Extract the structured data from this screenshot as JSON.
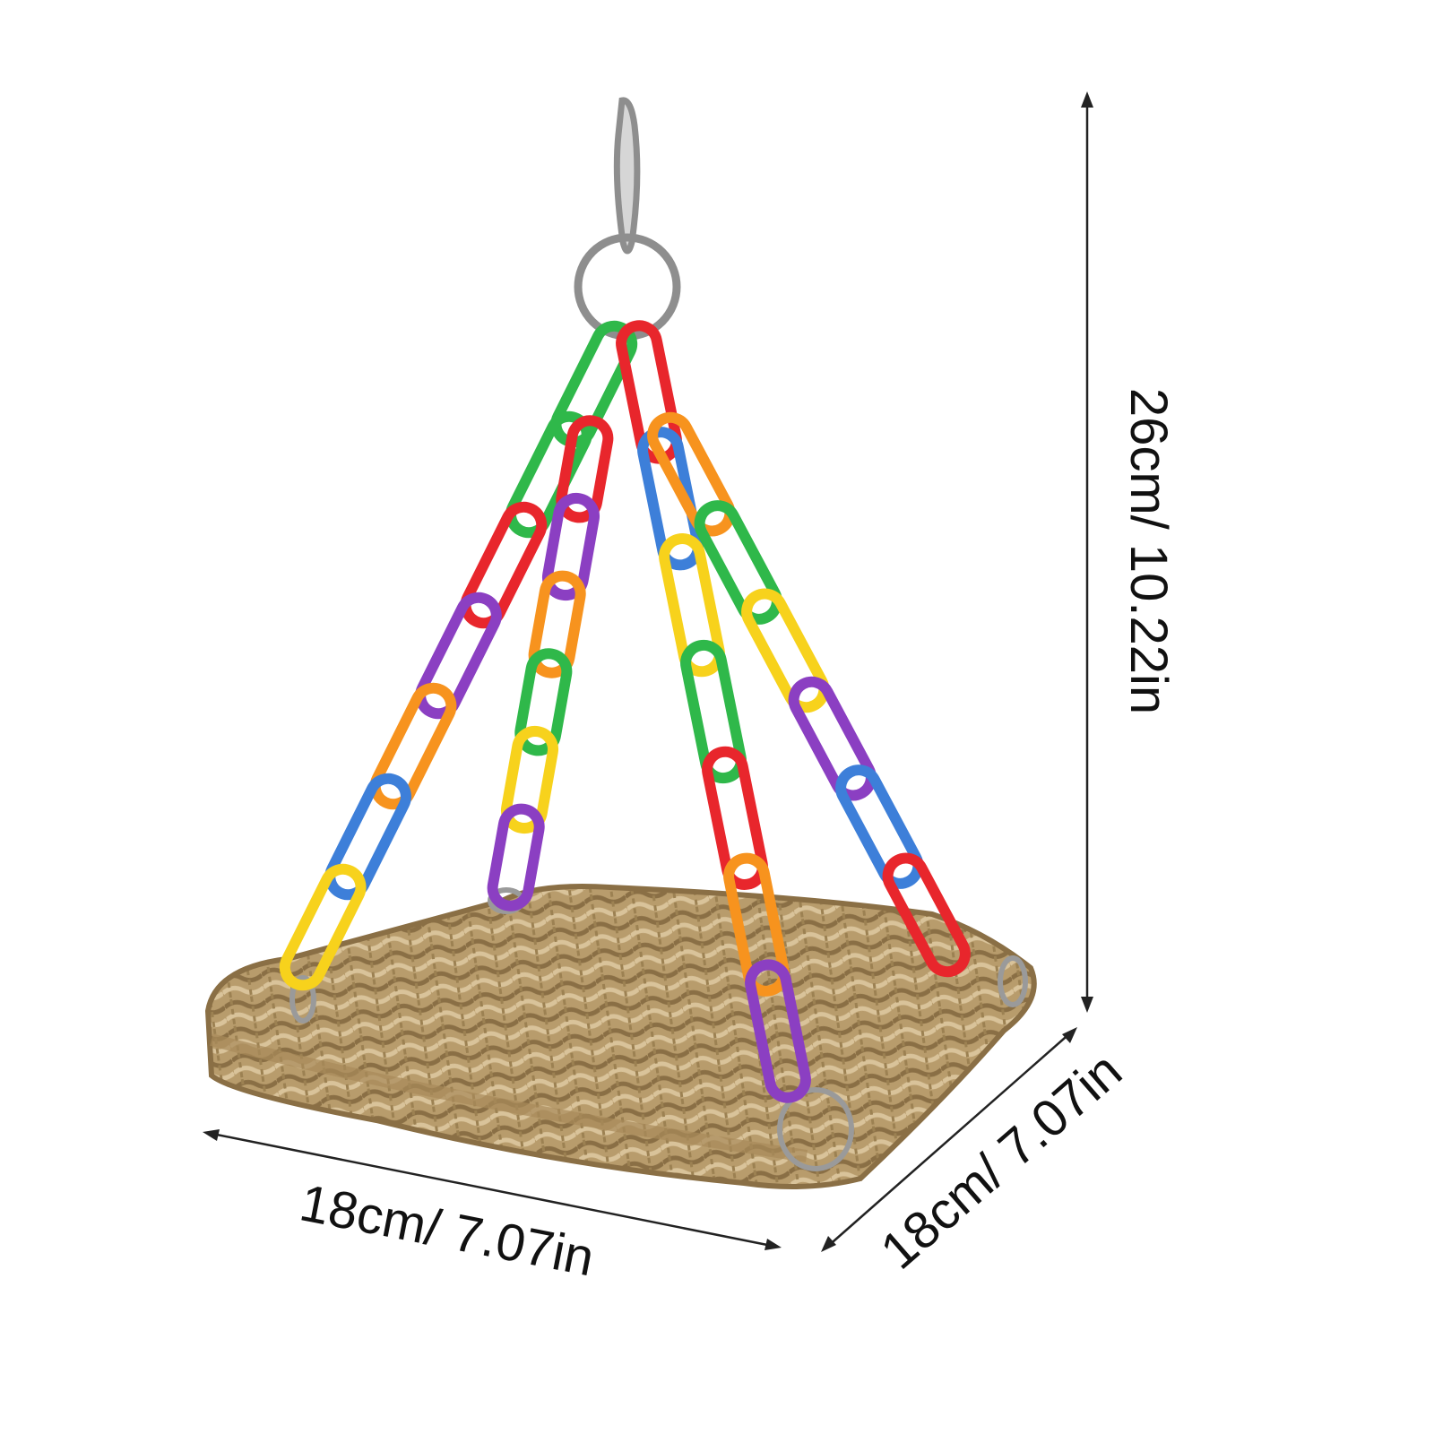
{
  "dimensions": {
    "height": "26cm/ 10.22in",
    "width": "18cm/ 7.07in",
    "depth": "18cm/ 7.07in"
  }
}
